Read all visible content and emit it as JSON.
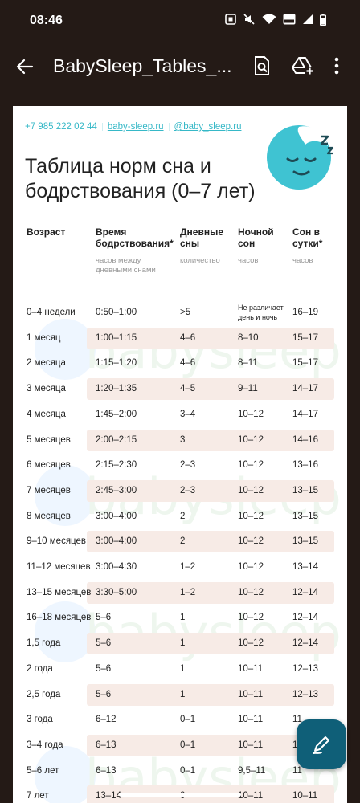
{
  "status": {
    "time": "08:46"
  },
  "appbar": {
    "title": "BabySleep_Tables_..."
  },
  "contact": {
    "phone": "+7 985 222 02 44",
    "site": "baby-sleep.ru",
    "handle": "@baby_sleep.ru"
  },
  "doc": {
    "title": "Таблица норм сна и бодрствования (0–7 лет)",
    "watermark": "babysleep"
  },
  "table": {
    "headers": [
      {
        "label": "Возраст",
        "sub": ""
      },
      {
        "label": "Время бодрствования*",
        "sub": "часов между дневными снами"
      },
      {
        "label": "Дневные сны",
        "sub": "количество"
      },
      {
        "label": "Ночной сон",
        "sub": "часов"
      },
      {
        "label": "Сон в сутки*",
        "sub": "часов"
      }
    ],
    "rows": [
      {
        "age": "0–4 недели",
        "awake": "0:50–1:00",
        "naps": ">5",
        "night": "Не различает день и ночь",
        "total": "16–19"
      },
      {
        "age": "1 месяц",
        "awake": "1:00–1:15",
        "naps": "4–6",
        "night": "8–10",
        "total": "15–17"
      },
      {
        "age": "2 месяца",
        "awake": "1:15–1:20",
        "naps": "4–6",
        "night": "8–11",
        "total": "15–17"
      },
      {
        "age": "3 месяца",
        "awake": "1:20–1:35",
        "naps": "4–5",
        "night": "9–11",
        "total": "14–17"
      },
      {
        "age": "4 месяца",
        "awake": "1:45–2:00",
        "naps": "3–4",
        "night": "10–12",
        "total": "14–17"
      },
      {
        "age": "5 месяцев",
        "awake": "2:00–2:15",
        "naps": "3",
        "night": "10–12",
        "total": "14–16"
      },
      {
        "age": "6 месяцев",
        "awake": "2:15–2:30",
        "naps": "2–3",
        "night": "10–12",
        "total": "13–16"
      },
      {
        "age": "7 месяцев",
        "awake": "2:45–3:00",
        "naps": "2–3",
        "night": "10–12",
        "total": "13–15"
      },
      {
        "age": "8 месяцев",
        "awake": "3:00–4:00",
        "naps": "2",
        "night": "10–12",
        "total": "13–15"
      },
      {
        "age": "9–10 месяцев",
        "awake": "3:00–4:00",
        "naps": "2",
        "night": "10–12",
        "total": "13–15"
      },
      {
        "age": "11–12 месяцев",
        "awake": "3:00–4:30",
        "naps": "1–2",
        "night": "10–12",
        "total": "13–14"
      },
      {
        "age": "13–15 месяцев",
        "awake": "3:30–5:00",
        "naps": "1–2",
        "night": "10–12",
        "total": "12–14"
      },
      {
        "age": "16–18 месяцев",
        "awake": "5–6",
        "naps": "1",
        "night": "10–12",
        "total": "12–14"
      },
      {
        "age": "1,5 года",
        "awake": "5–6",
        "naps": "1",
        "night": "10–12",
        "total": "12–14"
      },
      {
        "age": "2 года",
        "awake": "5–6",
        "naps": "1",
        "night": "10–11",
        "total": "12–13"
      },
      {
        "age": "2,5 года",
        "awake": "5–6",
        "naps": "1",
        "night": "10–11",
        "total": "12–13"
      },
      {
        "age": "3 года",
        "awake": "6–12",
        "naps": "0–1",
        "night": "10–11",
        "total": "11"
      },
      {
        "age": "3–4 года",
        "awake": "6–13",
        "naps": "0–1",
        "night": "10–11",
        "total": "11"
      },
      {
        "age": "5–6 лет",
        "awake": "6–13",
        "naps": "0–1",
        "night": "9,5–11",
        "total": "11"
      },
      {
        "age": "7 лет",
        "awake": "13–14",
        "naps": "0",
        "night": "10–11",
        "total": "10–11"
      }
    ]
  },
  "icons": {
    "back": "arrow-back-icon",
    "search_doc": "find-in-document-icon",
    "drive_add": "add-to-drive-icon",
    "more": "more-vert-icon",
    "edit": "edit-pen-icon",
    "logo": "sleeping-baby-logo"
  },
  "colors": {
    "accent": "#36b8c7",
    "row_highlight": "#f7ebe6",
    "fab": "#0f5f78",
    "appbar": "#241a16"
  }
}
